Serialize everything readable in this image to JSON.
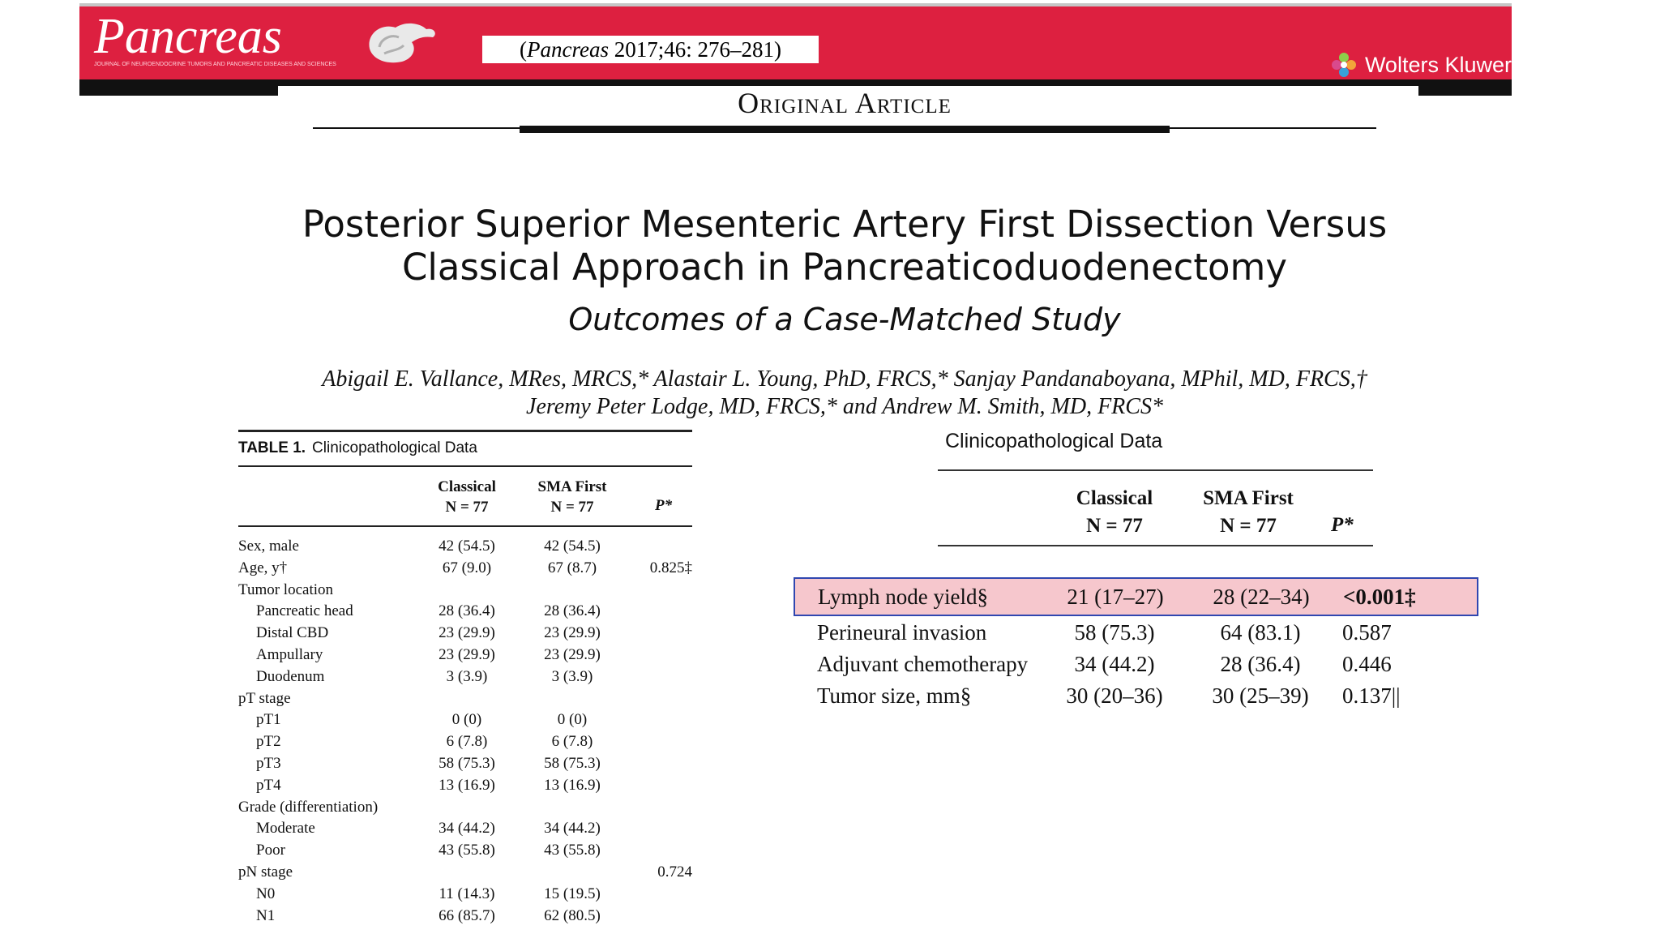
{
  "banner": {
    "journal_name": "Pancreas",
    "journal_tagline": "JOURNAL OF NEUROENDOCRINE TUMORS AND PANCREATIC DISEASES AND SCIENCES",
    "citation_journal": "Pancreas",
    "citation_rest": " 2017;46: 276–281)",
    "citation_open": "(",
    "publisher": "Wolters Kluwer",
    "colors": {
      "banner": "#dd2040",
      "highlight": "#f6c7cd",
      "highlight_border": "#3047b0"
    }
  },
  "section_label": "Original Article",
  "article": {
    "title": "Posterior Superior Mesenteric Artery First Dissection Versus Classical Approach in Pancreaticoduodenectomy",
    "subtitle": "Outcomes of a Case-Matched Study",
    "authors_line1": "Abigail E. Vallance, MRes, MRCS,* Alastair L. Young, PhD, FRCS,* Sanjay Pandanaboyana, MPhil, MD, FRCS,†",
    "authors_line2": "Jeremy Peter Lodge, MD, FRCS,* and Andrew M. Smith, MD, FRCS*"
  },
  "table1": {
    "label": "TABLE 1.",
    "caption": "Clinicopathological Data",
    "col1_name": "Classical",
    "col1_n": "N = 77",
    "col2_name": "SMA First",
    "col2_n": "N = 77",
    "col3_name": "P*",
    "rows": [
      {
        "label": "Sex, male",
        "c1": "42 (54.5)",
        "c2": "42 (54.5)",
        "p": ""
      },
      {
        "label": "Age, y†",
        "c1": "67 (9.0)",
        "c2": "67 (8.7)",
        "p": "0.825‡"
      },
      {
        "label": "Tumor location",
        "c1": "",
        "c2": "",
        "p": ""
      },
      {
        "label": "Pancreatic head",
        "c1": "28 (36.4)",
        "c2": "28 (36.4)",
        "p": ""
      },
      {
        "label": "Distal CBD",
        "c1": "23 (29.9)",
        "c2": "23 (29.9)",
        "p": ""
      },
      {
        "label": "Ampullary",
        "c1": "23 (29.9)",
        "c2": "23 (29.9)",
        "p": ""
      },
      {
        "label": "Duodenum",
        "c1": "3 (3.9)",
        "c2": "3 (3.9)",
        "p": ""
      },
      {
        "label": "pT stage",
        "c1": "",
        "c2": "",
        "p": ""
      },
      {
        "label": "pT1",
        "c1": "0 (0)",
        "c2": "0 (0)",
        "p": ""
      },
      {
        "label": "pT2",
        "c1": "6 (7.8)",
        "c2": "6 (7.8)",
        "p": ""
      },
      {
        "label": "pT3",
        "c1": "58 (75.3)",
        "c2": "58 (75.3)",
        "p": ""
      },
      {
        "label": "pT4",
        "c1": "13 (16.9)",
        "c2": "13 (16.9)",
        "p": ""
      },
      {
        "label": "Grade (differentiation)",
        "c1": "",
        "c2": "",
        "p": ""
      },
      {
        "label": "Moderate",
        "c1": "34 (44.2)",
        "c2": "34 (44.2)",
        "p": ""
      },
      {
        "label": "Poor",
        "c1": "43 (55.8)",
        "c2": "43 (55.8)",
        "p": ""
      },
      {
        "label": "pN stage",
        "c1": "",
        "c2": "",
        "p": "0.724"
      },
      {
        "label": "N0",
        "c1": "11 (14.3)",
        "c2": "15 (19.5)",
        "p": ""
      },
      {
        "label": "N1",
        "c1": "66 (85.7)",
        "c2": "62 (80.5)",
        "p": ""
      }
    ]
  },
  "table2": {
    "caption": "Clinicopathological Data",
    "col1_name": "Classical",
    "col1_n": "N = 77",
    "col2_name": "SMA First",
    "col2_n": "N = 77",
    "col3_name": "P*",
    "rows": [
      {
        "label": "Lymph node yield§",
        "c1": "21 (17–27)",
        "c2": "28 (22–34)",
        "p": "<0.001‡"
      },
      {
        "label": "Perineural invasion",
        "c1": "58 (75.3)",
        "c2": "64 (83.1)",
        "p": "0.587"
      },
      {
        "label": "Adjuvant chemotherapy",
        "c1": "34 (44.2)",
        "c2": "28 (36.4)",
        "p": "0.446"
      },
      {
        "label": "Tumor size, mm§",
        "c1": "30 (20–36)",
        "c2": "30 (25–39)",
        "p": "0.137||"
      }
    ]
  }
}
